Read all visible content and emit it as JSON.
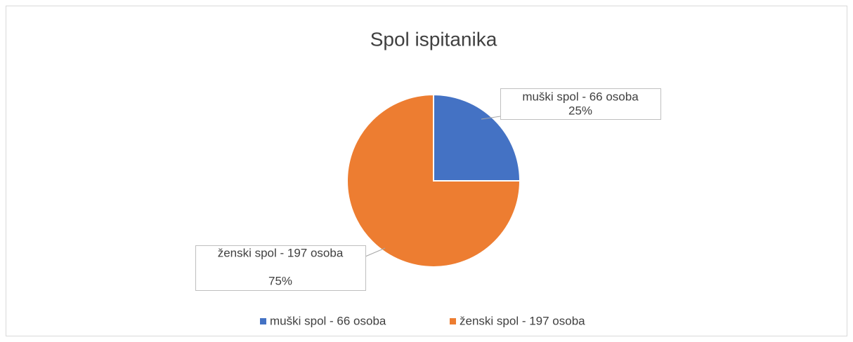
{
  "chart_data": {
    "type": "pie",
    "title": "Spol ispitanika",
    "categories": [
      "muški spol - 66 osoba",
      "ženski spol - 197 osoba"
    ],
    "values": [
      25,
      75
    ],
    "value_labels": [
      "25%",
      "75%"
    ],
    "colors": [
      "#4472c4",
      "#ed7d31"
    ],
    "legend": "bottom"
  }
}
